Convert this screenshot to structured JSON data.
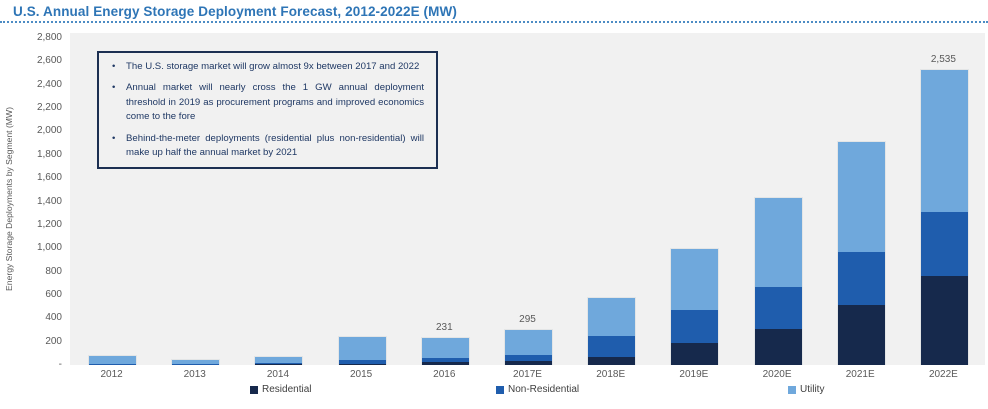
{
  "title": "U.S. Annual Energy Storage Deployment Forecast, 2012-2022E (MW)",
  "y_axis_title": "Energy Storage Deployments by Segment (MW)",
  "annotation_box": {
    "bullets": [
      "The U.S. storage market will grow almost 9x between 2017 and 2022",
      "Annual market will nearly cross the 1 GW annual deployment threshold in 2019 as procurement programs and improved economics come to the fore",
      "Behind-the-meter deployments (residential plus non-residential) will make up half the annual market by 2021"
    ]
  },
  "chart_data": {
    "type": "bar",
    "stacked": true,
    "title": "U.S. Annual Energy Storage Deployment Forecast, 2012-2022E (MW)",
    "xlabel": "",
    "ylabel": "Energy Storage Deployments by Segment (MW)",
    "categories": [
      "2012",
      "2013",
      "2014",
      "2015",
      "2016",
      "2017E",
      "2018E",
      "2019E",
      "2020E",
      "2021E",
      "2022E"
    ],
    "series": [
      {
        "name": "Residential",
        "color": "#16294c",
        "values": [
          2,
          2,
          5,
          5,
          28,
          34,
          70,
          185,
          305,
          510,
          765
        ]
      },
      {
        "name": "Non-Residential",
        "color": "#1f5dad",
        "values": [
          12,
          8,
          10,
          35,
          35,
          49,
          180,
          280,
          360,
          450,
          550
        ]
      },
      {
        "name": "Utility",
        "color": "#6fa8dc",
        "values": [
          71,
          30,
          48,
          194,
          168,
          212,
          325,
          520,
          765,
          940,
          1220
        ]
      }
    ],
    "totals": [
      85,
      40,
      63,
      234,
      231,
      295,
      575,
      985,
      1430,
      1900,
      2535
    ],
    "bar_labels": [
      "",
      "",
      "",
      "",
      "231",
      "295",
      "",
      "",
      "",
      "",
      "2,535"
    ],
    "ylim": [
      0,
      2800
    ],
    "ytick_step": 200,
    "ytick_labels": [
      "-",
      "200",
      "400",
      "600",
      "800",
      "1,000",
      "1,200",
      "1,400",
      "1,600",
      "1,800",
      "2,000",
      "2,200",
      "2,400",
      "2,600",
      "2,800"
    ],
    "grid": false,
    "legend_position": "bottom"
  },
  "colors": {
    "title_blue": "#2e75b6",
    "plot_background": "#f1f1f1",
    "axis_text": "#595959",
    "annotation_text": "#1f3864",
    "annotation_border": "#1c2f52"
  }
}
